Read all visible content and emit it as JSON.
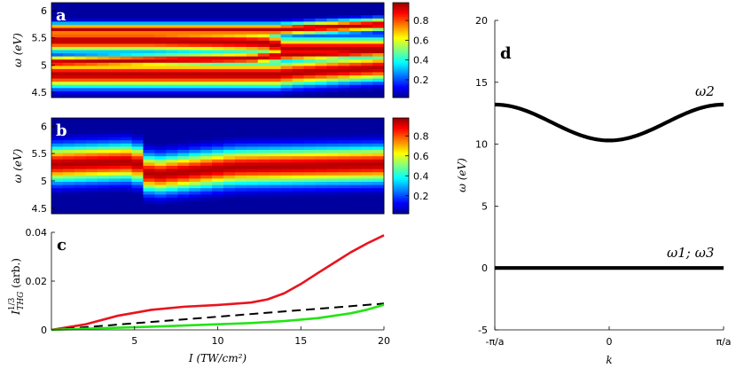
{
  "colors": {
    "curve_red": "#e8141e",
    "curve_green": "#22e414",
    "curve_black": "#000000",
    "panel_letter_light": "#ffffff",
    "panel_letter_dark": "#000000"
  },
  "colormap": "jet",
  "chart_data": [
    {
      "id": "a",
      "type": "heatmap",
      "panel_label": "a",
      "ylabel": "ω (eV)",
      "yticks": [
        "4.5",
        "5",
        "5.5",
        "6"
      ],
      "ylim": [
        4.4,
        6.15
      ],
      "x_columns": 29,
      "colorbar": {
        "range": [
          0.02,
          0.98
        ],
        "ticks": [
          "0.2",
          "0.4",
          "0.6",
          "0.8"
        ],
        "tick_values": [
          0.2,
          0.4,
          0.6,
          0.8
        ]
      },
      "ridges": [
        {
          "x": [
            0,
            0.3,
            0.58,
            0.66,
            0.7,
            0.85,
            1.0
          ],
          "y": [
            5.45,
            5.45,
            5.42,
            5.4,
            5.3,
            5.3,
            5.3
          ],
          "sigma": 0.14
        },
        {
          "x": [
            0,
            0.6,
            0.7,
            1.0
          ],
          "y": [
            5.05,
            5.12,
            5.18,
            5.25
          ],
          "sigma": 0.08
        },
        {
          "x": [
            0.68,
            0.72,
            1.0
          ],
          "y": [
            4.82,
            4.85,
            4.95
          ],
          "sigma": 0.16
        },
        {
          "x": [
            0.68,
            1.0
          ],
          "y": [
            5.65,
            5.75
          ],
          "sigma": 0.08
        }
      ]
    },
    {
      "id": "b",
      "type": "heatmap",
      "panel_label": "b",
      "ylabel": "ω (eV)",
      "yticks": [
        "4.5",
        "5",
        "5.5",
        "6"
      ],
      "ylim": [
        4.4,
        6.15
      ],
      "x_columns": 29,
      "colorbar": {
        "range": [
          0.02,
          0.98
        ],
        "ticks": [
          "0.2",
          "0.4",
          "0.6",
          "0.8"
        ],
        "tick_values": [
          0.2,
          0.4,
          0.6,
          0.8
        ]
      },
      "ridges": [
        {
          "x": [
            0,
            0.25,
            0.3,
            0.55,
            1.0
          ],
          "y": [
            5.3,
            5.35,
            5.1,
            5.25,
            5.3
          ],
          "sigma": 0.22
        }
      ]
    },
    {
      "id": "c",
      "type": "line",
      "panel_label": "c",
      "xlabel": "I (TW/cm²)",
      "ylabel_main": "I",
      "ylabel_sup": "1/3",
      "ylabel_sub": "THG",
      "ylabel_suffix": " (arb.)",
      "xlim": [
        0,
        20
      ],
      "ylim": [
        0,
        0.04
      ],
      "xticks": [
        5,
        10,
        15,
        20
      ],
      "xtick_labels": [
        "5",
        "10",
        "15",
        "20"
      ],
      "yticks": [
        0,
        0.02,
        0.04
      ],
      "ytick_labels": [
        "0",
        "0.02",
        "0.04"
      ],
      "series": [
        {
          "color": "#e8141e",
          "style": "solid",
          "x": [
            0,
            2,
            4,
            6,
            8,
            10,
            12,
            13,
            14,
            15,
            16,
            17,
            18,
            19,
            20
          ],
          "y": [
            0,
            0.0022,
            0.0058,
            0.0082,
            0.0095,
            0.0102,
            0.0112,
            0.0125,
            0.015,
            0.0188,
            0.0232,
            0.0275,
            0.0318,
            0.0355,
            0.0388
          ]
        },
        {
          "color": "#000000",
          "style": "dashed",
          "x": [
            0,
            20
          ],
          "y": [
            0,
            0.0108
          ]
        },
        {
          "color": "#22e414",
          "style": "solid",
          "x": [
            0,
            2,
            4,
            6,
            8,
            10,
            12,
            14,
            16,
            18,
            19,
            20
          ],
          "y": [
            0,
            0.0005,
            0.0009,
            0.0013,
            0.0018,
            0.0023,
            0.0028,
            0.0036,
            0.0048,
            0.0068,
            0.0083,
            0.0103
          ]
        }
      ]
    },
    {
      "id": "d",
      "type": "line",
      "panel_label": "d",
      "xlabel": "k",
      "ylabel": "ω (eV)",
      "xlim": [
        -1,
        1
      ],
      "ylim": [
        -5,
        20
      ],
      "xticks": [
        -1,
        0,
        1
      ],
      "xtick_labels": [
        "-π/a",
        "0",
        "π/a"
      ],
      "yticks": [
        -5,
        0,
        5,
        10,
        15,
        20
      ],
      "ytick_labels": [
        "-5",
        "0",
        "5",
        "10",
        "15",
        "20"
      ],
      "branch_upper_label": "ω2",
      "branch_lower_label": "ω1;  ω3",
      "series": [
        {
          "name": "ω2",
          "x": [
            -1,
            -0.875,
            -0.75,
            -0.625,
            -0.5,
            -0.375,
            -0.25,
            -0.125,
            0,
            0.125,
            0.25,
            0.375,
            0.5,
            0.625,
            0.75,
            0.875,
            1
          ],
          "y": [
            13.2,
            13.13,
            12.92,
            12.61,
            12.25,
            11.89,
            11.58,
            11.37,
            10.3,
            11.37,
            11.58,
            11.89,
            12.25,
            12.61,
            12.92,
            13.13,
            13.2
          ]
        },
        {
          "name": "ω1; ω3",
          "x": [
            -1,
            1
          ],
          "y": [
            0,
            0
          ]
        }
      ]
    }
  ]
}
